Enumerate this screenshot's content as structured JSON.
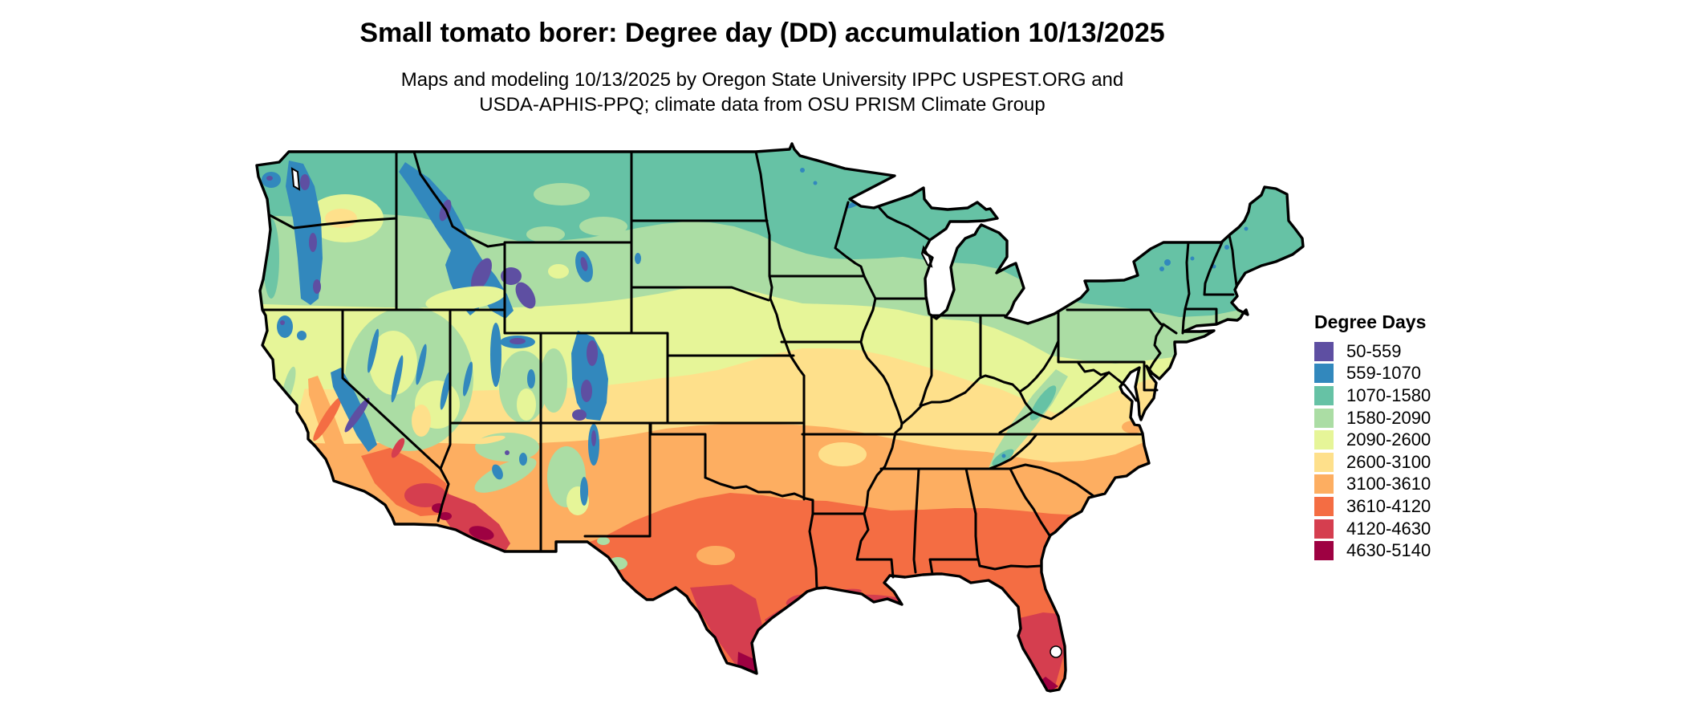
{
  "header": {
    "title": "Small tomato borer: Degree day (DD) accumulation 10/13/2025",
    "subtitle_line1": "Maps and modeling 10/13/2025 by Oregon State University IPPC USPEST.ORG and",
    "subtitle_line2": "USDA-APHIS-PPQ; climate data from OSU PRISM Climate Group"
  },
  "map": {
    "area": "Contiguous United States",
    "kind": "degree-day raster map with state borders",
    "border_color": "#000000",
    "background": "#ffffff"
  },
  "legend": {
    "title": "Degree Days",
    "items": [
      {
        "label": "50-559",
        "color": "#5e4fa2"
      },
      {
        "label": "559-1070",
        "color": "#3288bd"
      },
      {
        "label": "1070-1580",
        "color": "#66c2a5"
      },
      {
        "label": "1580-2090",
        "color": "#abdda4"
      },
      {
        "label": "2090-2600",
        "color": "#e6f598"
      },
      {
        "label": "2600-3100",
        "color": "#fee08b"
      },
      {
        "label": "3100-3610",
        "color": "#fdae61"
      },
      {
        "label": "3610-4120",
        "color": "#f46d43"
      },
      {
        "label": "4120-4630",
        "color": "#d53e4f"
      },
      {
        "label": "4630-5140",
        "color": "#9e0142"
      }
    ]
  }
}
